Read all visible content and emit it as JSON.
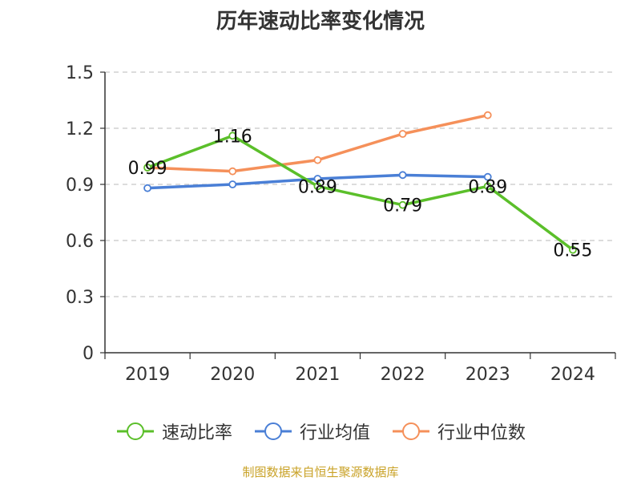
{
  "title": "历年速动比率变化情况",
  "source": "制图数据来自恒生聚源数据库",
  "colors": {
    "text": "#333333",
    "axis": "#333333",
    "grid": "#c8c8c8",
    "source": "#c9a227"
  },
  "chart_data": {
    "type": "line",
    "title": "历年速动比率变化情况",
    "categories": [
      "2019",
      "2020",
      "2021",
      "2022",
      "2023",
      "2024"
    ],
    "ylim": [
      0,
      1.5
    ],
    "yticks": [
      "0",
      "0.3",
      "0.6",
      "0.9",
      "1.2",
      "1.5"
    ],
    "grid": true,
    "legend_position": "bottom",
    "series": [
      {
        "name": "速动比率",
        "color": "#5bbf2a",
        "values": [
          0.99,
          1.16,
          0.89,
          0.79,
          0.89,
          0.55
        ],
        "labels": [
          "0.99",
          "1.16",
          "0.89",
          "0.79",
          "0.89",
          "0.55"
        ]
      },
      {
        "name": "行业均值",
        "color": "#4a7fd6",
        "values": [
          0.88,
          0.9,
          0.93,
          0.95,
          0.94,
          null
        ]
      },
      {
        "name": "行业中位数",
        "color": "#f5905a",
        "values": [
          0.99,
          0.97,
          1.03,
          1.17,
          1.27,
          null
        ]
      }
    ]
  }
}
